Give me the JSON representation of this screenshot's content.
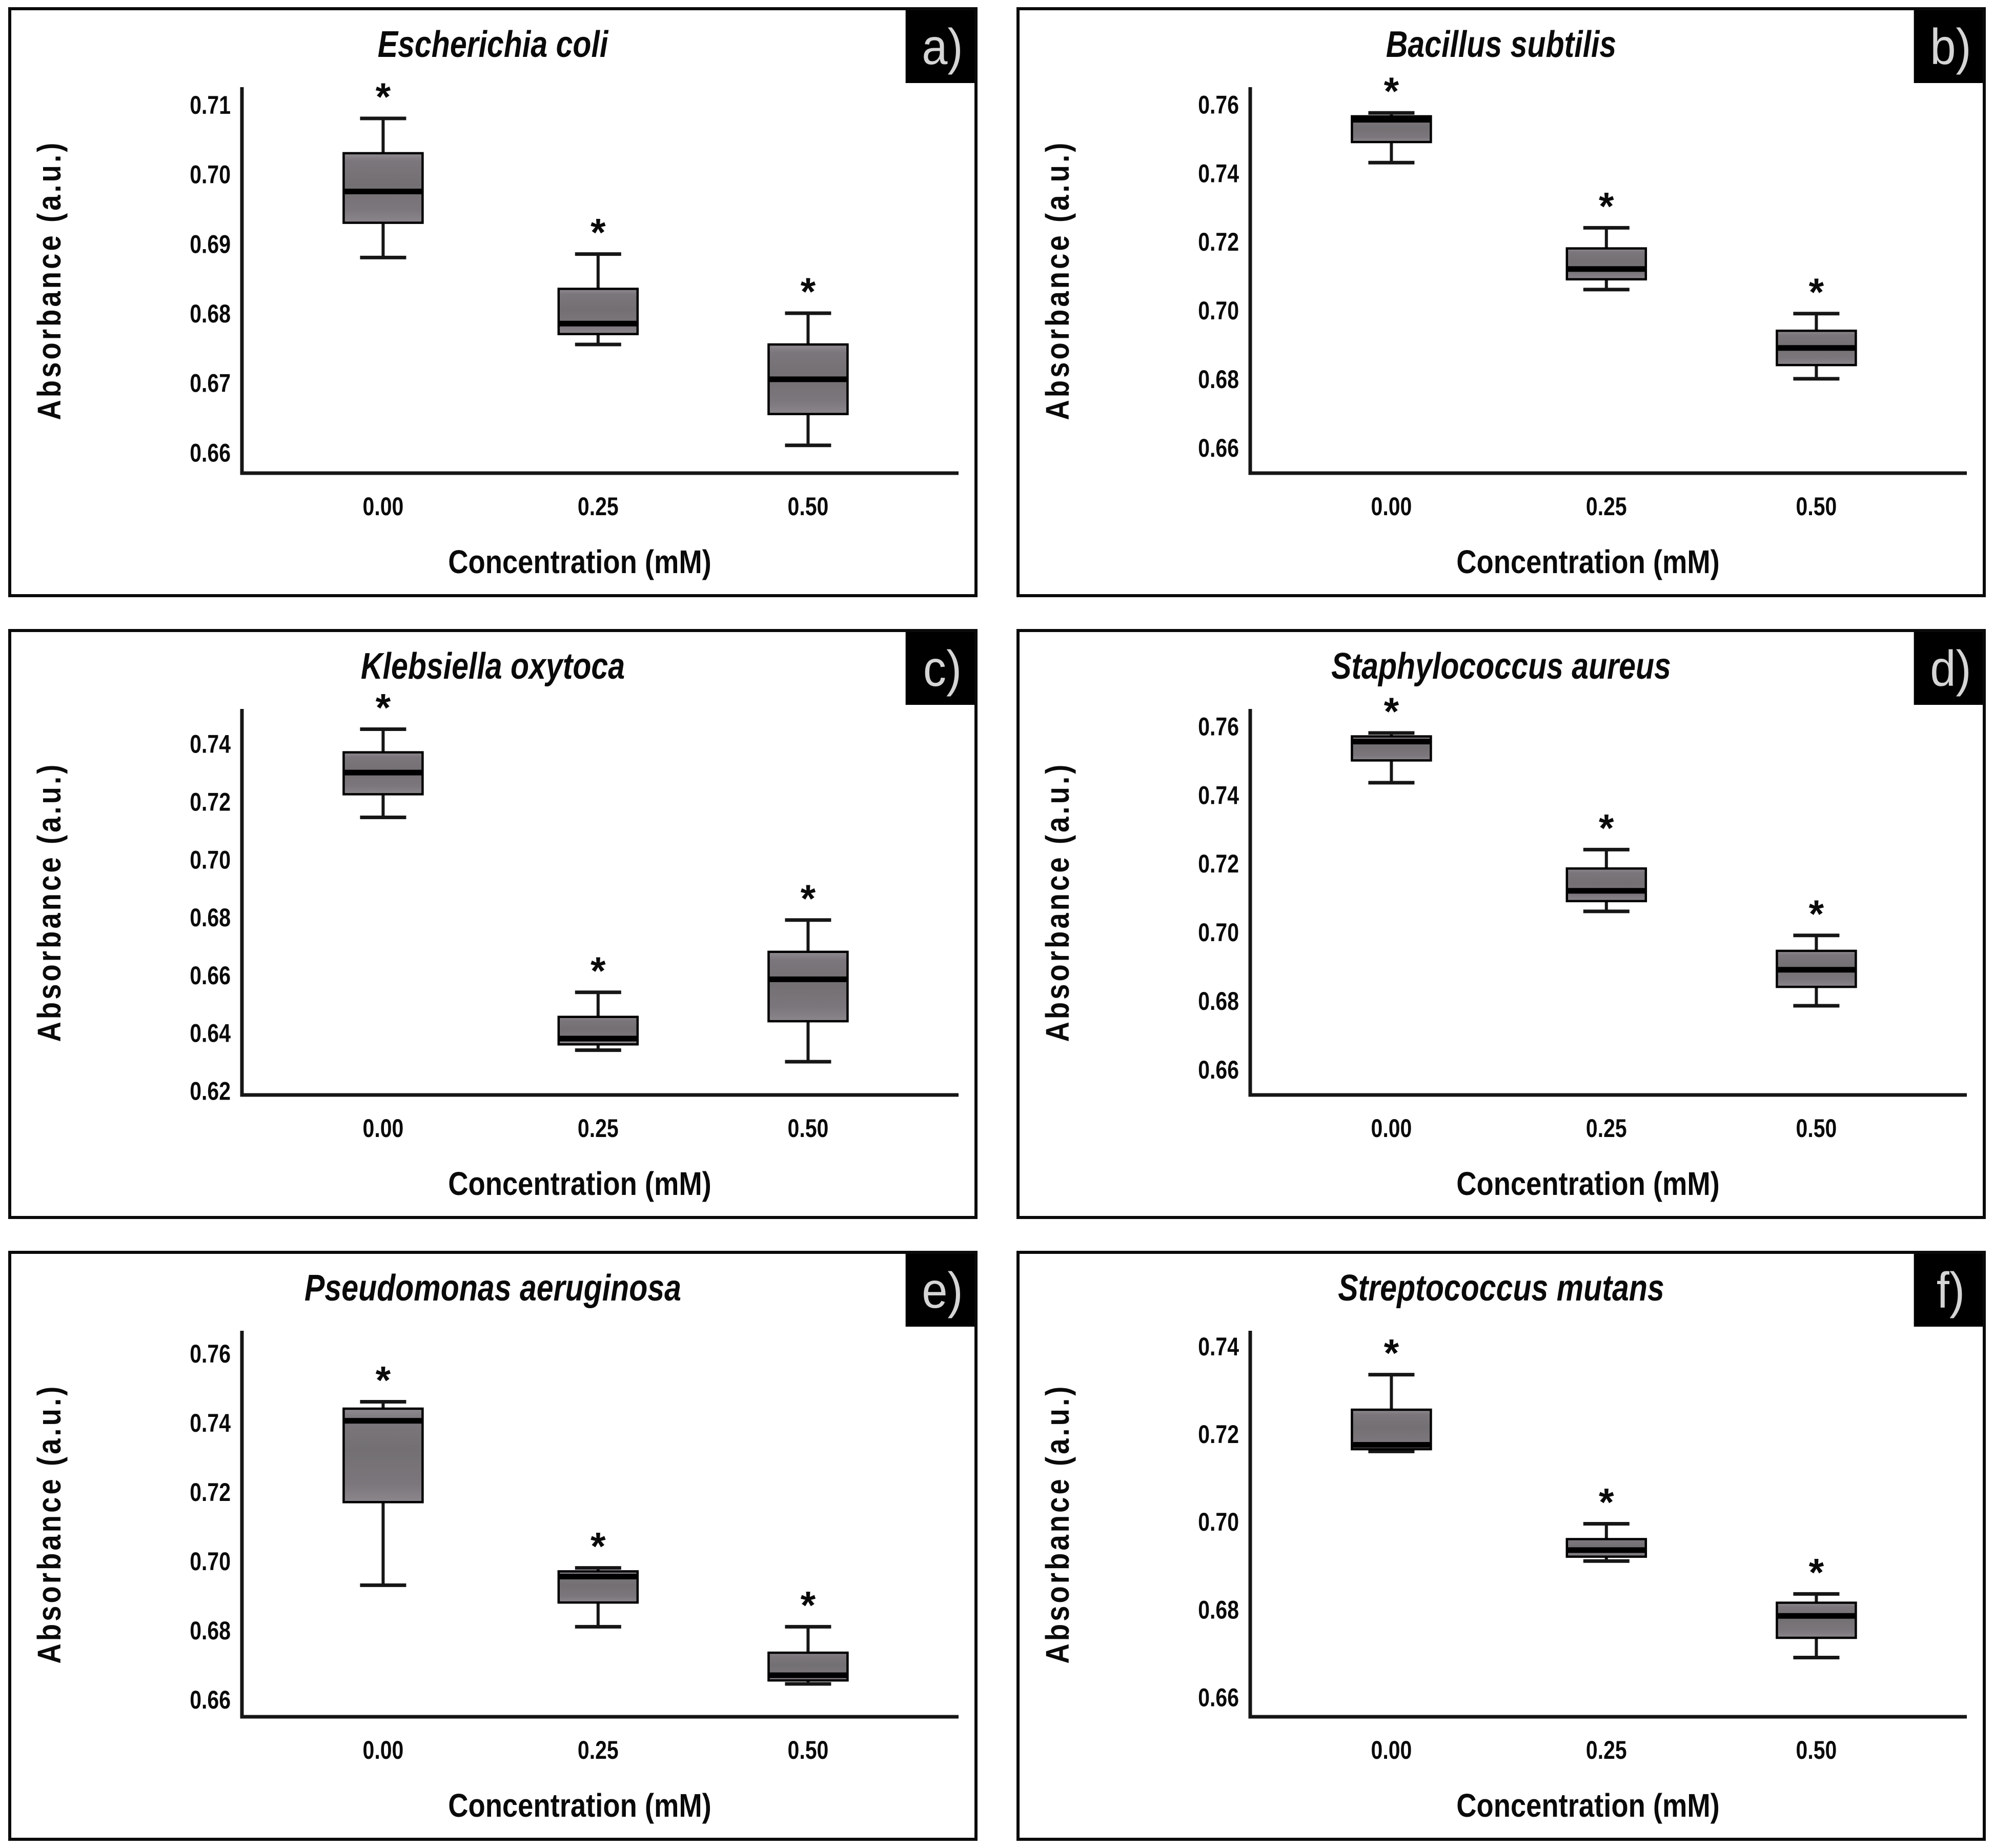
{
  "figure": {
    "background": "#ffffff",
    "panel_border": "#0a0a0a",
    "box_fill": "#7b767b",
    "box_fill_light": "#908b90",
    "box_edge": "#000000",
    "median_color": "#000000",
    "whisker_color": "#161616",
    "badge_bg": "#000000",
    "badge_fg": "#d5d5d5",
    "significance_marker": "*"
  },
  "chart_data": [
    {
      "type": "box",
      "panel_label": "a)",
      "title": "Escherichia coli",
      "xlabel": "Concentration (mM)",
      "ylabel": "Absorbance (a.u.)",
      "categories": [
        "0.00",
        "0.25",
        "0.50"
      ],
      "yticks": [
        0.66,
        0.67,
        0.68,
        0.69,
        0.7,
        0.71
      ],
      "ytick_labels": [
        "0.66",
        "0.67",
        "0.68",
        "0.69",
        "0.70",
        "0.71"
      ],
      "ylim": [
        0.657,
        0.7125
      ],
      "legend": "none",
      "grid": "off",
      "boxes": [
        {
          "category": "0.00",
          "whislo": 0.688,
          "q1": 0.693,
          "med": 0.6975,
          "q3": 0.703,
          "whishi": 0.708,
          "annotation": "*"
        },
        {
          "category": "0.25",
          "whislo": 0.6755,
          "q1": 0.677,
          "med": 0.6785,
          "q3": 0.6835,
          "whishi": 0.6885,
          "annotation": "*"
        },
        {
          "category": "0.50",
          "whislo": 0.661,
          "q1": 0.6655,
          "med": 0.6705,
          "q3": 0.6755,
          "whishi": 0.68,
          "annotation": "*"
        }
      ]
    },
    {
      "type": "box",
      "panel_label": "b)",
      "title": "Bacillus subtilis",
      "xlabel": "Concentration (mM)",
      "ylabel": "Absorbance (a.u.)",
      "categories": [
        "0.00",
        "0.25",
        "0.50"
      ],
      "yticks": [
        0.66,
        0.68,
        0.7,
        0.72,
        0.74,
        0.76
      ],
      "ytick_labels": [
        "0.66",
        "0.68",
        "0.70",
        "0.72",
        "0.74",
        "0.76"
      ],
      "ylim": [
        0.6525,
        0.765
      ],
      "legend": "none",
      "grid": "off",
      "boxes": [
        {
          "category": "0.00",
          "whislo": 0.743,
          "q1": 0.749,
          "med": 0.7555,
          "q3": 0.7565,
          "whishi": 0.7575,
          "annotation": "*"
        },
        {
          "category": "0.25",
          "whislo": 0.706,
          "q1": 0.709,
          "med": 0.712,
          "q3": 0.718,
          "whishi": 0.724,
          "annotation": "*"
        },
        {
          "category": "0.50",
          "whislo": 0.68,
          "q1": 0.684,
          "med": 0.689,
          "q3": 0.694,
          "whishi": 0.699,
          "annotation": "*"
        }
      ]
    },
    {
      "type": "box",
      "panel_label": "c)",
      "title": "Klebsiella oxytoca",
      "xlabel": "Concentration (mM)",
      "ylabel": "Absorbance (a.u.)",
      "categories": [
        "0.00",
        "0.25",
        "0.50"
      ],
      "yticks": [
        0.62,
        0.64,
        0.66,
        0.68,
        0.7,
        0.72,
        0.74
      ],
      "ytick_labels": [
        "0.62",
        "0.64",
        "0.66",
        "0.68",
        "0.70",
        "0.72",
        "0.74"
      ],
      "ylim": [
        0.6185,
        0.752
      ],
      "legend": "none",
      "grid": "off",
      "boxes": [
        {
          "category": "0.00",
          "whislo": 0.7145,
          "q1": 0.7225,
          "med": 0.73,
          "q3": 0.737,
          "whishi": 0.745,
          "annotation": "*"
        },
        {
          "category": "0.25",
          "whislo": 0.634,
          "q1": 0.636,
          "med": 0.638,
          "q3": 0.6455,
          "whishi": 0.654,
          "annotation": "*"
        },
        {
          "category": "0.50",
          "whislo": 0.63,
          "q1": 0.644,
          "med": 0.6585,
          "q3": 0.668,
          "whishi": 0.679,
          "annotation": "*"
        }
      ]
    },
    {
      "type": "box",
      "panel_label": "d)",
      "title": "Staphylococcus aureus",
      "xlabel": "Concentration (mM)",
      "ylabel": "Absorbance (a.u.)",
      "categories": [
        "0.00",
        "0.25",
        "0.50"
      ],
      "yticks": [
        0.66,
        0.68,
        0.7,
        0.72,
        0.74,
        0.76
      ],
      "ytick_labels": [
        "0.66",
        "0.68",
        "0.70",
        "0.72",
        "0.74",
        "0.76"
      ],
      "ylim": [
        0.6525,
        0.765
      ],
      "legend": "none",
      "grid": "off",
      "boxes": [
        {
          "category": "0.00",
          "whislo": 0.7435,
          "q1": 0.75,
          "med": 0.7555,
          "q3": 0.757,
          "whishi": 0.758,
          "annotation": "*"
        },
        {
          "category": "0.25",
          "whislo": 0.706,
          "q1": 0.709,
          "med": 0.712,
          "q3": 0.7185,
          "whishi": 0.724,
          "annotation": "*"
        },
        {
          "category": "0.50",
          "whislo": 0.6785,
          "q1": 0.684,
          "med": 0.689,
          "q3": 0.6945,
          "whishi": 0.699,
          "annotation": "*"
        }
      ]
    },
    {
      "type": "box",
      "panel_label": "e)",
      "title": "Pseudomonas aeruginosa",
      "xlabel": "Concentration (mM)",
      "ylabel": "Absorbance (a.u.)",
      "categories": [
        "0.00",
        "0.25",
        "0.50"
      ],
      "yticks": [
        0.66,
        0.68,
        0.7,
        0.72,
        0.74,
        0.76
      ],
      "ytick_labels": [
        "0.66",
        "0.68",
        "0.70",
        "0.72",
        "0.74",
        "0.76"
      ],
      "ylim": [
        0.655,
        0.7665
      ],
      "legend": "none",
      "grid": "off",
      "boxes": [
        {
          "category": "0.00",
          "whislo": 0.693,
          "q1": 0.717,
          "med": 0.7405,
          "q3": 0.744,
          "whishi": 0.746,
          "annotation": "*"
        },
        {
          "category": "0.25",
          "whislo": 0.681,
          "q1": 0.688,
          "med": 0.6955,
          "q3": 0.697,
          "whishi": 0.698,
          "annotation": "*"
        },
        {
          "category": "0.50",
          "whislo": 0.6645,
          "q1": 0.6655,
          "med": 0.667,
          "q3": 0.6735,
          "whishi": 0.681,
          "annotation": "*"
        }
      ]
    },
    {
      "type": "box",
      "panel_label": "f)",
      "title": "Streptococcus mutans",
      "xlabel": "Concentration (mM)",
      "ylabel": "Absorbance (a.u.)",
      "categories": [
        "0.00",
        "0.25",
        "0.50"
      ],
      "yticks": [
        0.66,
        0.68,
        0.7,
        0.72,
        0.74
      ],
      "ytick_labels": [
        "0.66",
        "0.68",
        "0.70",
        "0.72",
        "0.74"
      ],
      "ylim": [
        0.6555,
        0.7435
      ],
      "legend": "none",
      "grid": "off",
      "boxes": [
        {
          "category": "0.00",
          "whislo": 0.716,
          "q1": 0.7165,
          "med": 0.7175,
          "q3": 0.7255,
          "whishi": 0.7335,
          "annotation": "*"
        },
        {
          "category": "0.25",
          "whislo": 0.691,
          "q1": 0.692,
          "med": 0.6935,
          "q3": 0.696,
          "whishi": 0.6995,
          "annotation": "*"
        },
        {
          "category": "0.50",
          "whislo": 0.669,
          "q1": 0.6735,
          "med": 0.6785,
          "q3": 0.6815,
          "whishi": 0.6835,
          "annotation": "*"
        }
      ]
    }
  ]
}
